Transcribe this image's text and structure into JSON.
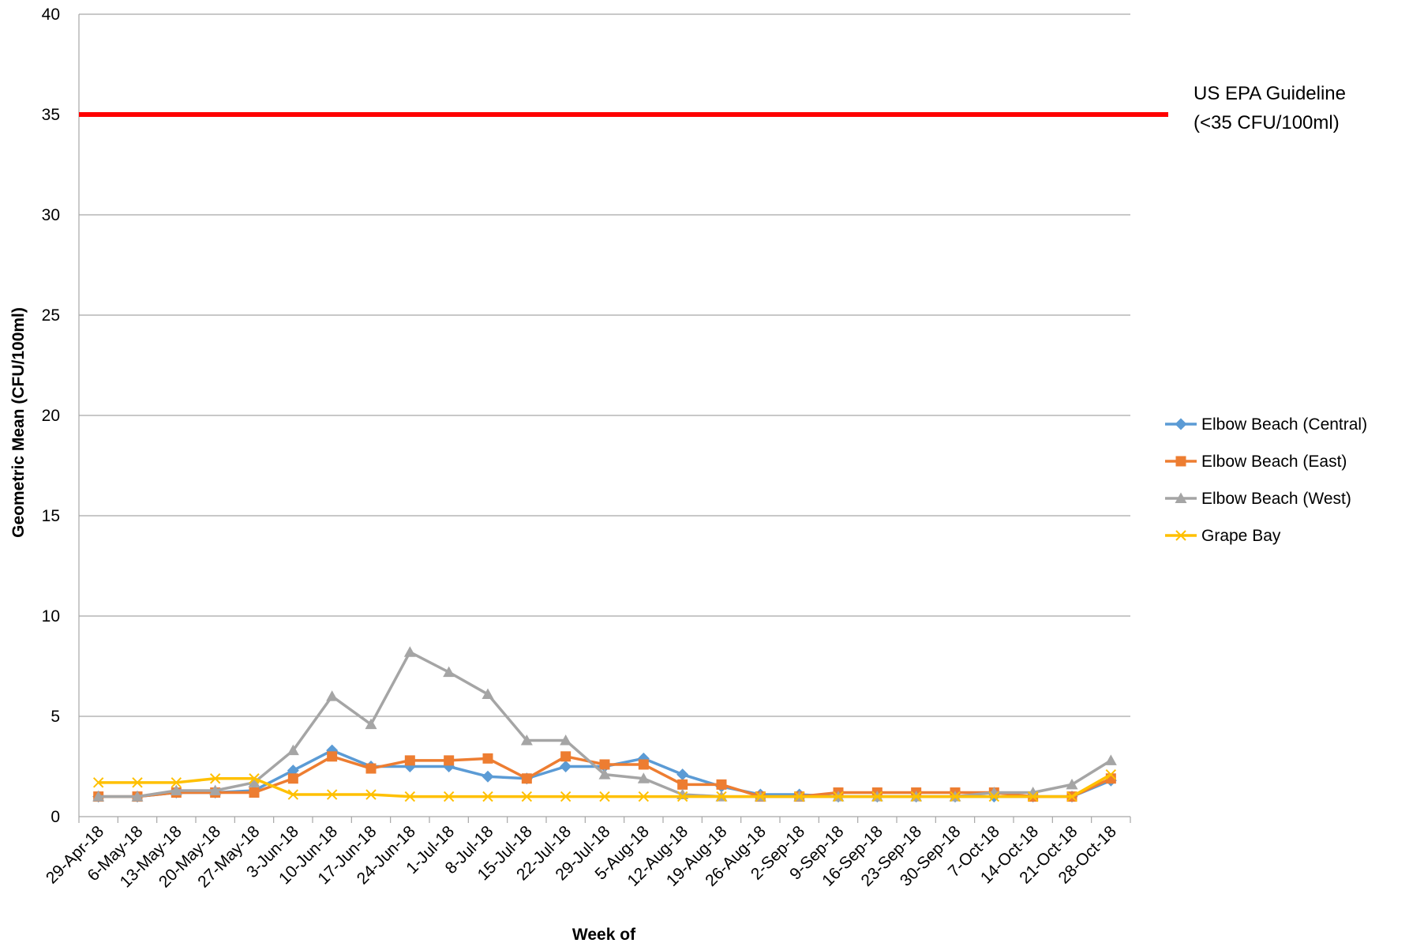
{
  "chart_data": {
    "type": "line",
    "title": "",
    "xlabel": "Week of",
    "ylabel": "Geometric Mean (CFU/100ml)",
    "ylim": [
      0,
      40
    ],
    "yticks": [
      0,
      5,
      10,
      15,
      20,
      25,
      30,
      35,
      40
    ],
    "grid": true,
    "legend_position": "right",
    "categories": [
      "29-Apr-18",
      "6-May-18",
      "13-May-18",
      "20-May-18",
      "27-May-18",
      "3-Jun-18",
      "10-Jun-18",
      "17-Jun-18",
      "24-Jun-18",
      "1-Jul-18",
      "8-Jul-18",
      "15-Jul-18",
      "22-Jul-18",
      "29-Jul-18",
      "5-Aug-18",
      "12-Aug-18",
      "19-Aug-18",
      "26-Aug-18",
      "2-Sep-18",
      "9-Sep-18",
      "16-Sep-18",
      "23-Sep-18",
      "30-Sep-18",
      "7-Oct-18",
      "14-Oct-18",
      "21-Oct-18",
      "28-Oct-18"
    ],
    "series": [
      {
        "name": "Elbow Beach (Central)",
        "color": "#5b9bd5",
        "marker": "diamond",
        "values": [
          1.0,
          1.0,
          1.2,
          1.2,
          1.3,
          2.3,
          3.3,
          2.5,
          2.5,
          2.5,
          2.0,
          1.9,
          2.5,
          2.5,
          2.9,
          2.1,
          1.5,
          1.1,
          1.1,
          1.0,
          1.0,
          1.0,
          1.0,
          1.0,
          1.0,
          1.0,
          1.8
        ]
      },
      {
        "name": "Elbow Beach (East)",
        "color": "#ed7d31",
        "marker": "square",
        "values": [
          1.0,
          1.0,
          1.2,
          1.2,
          1.2,
          1.9,
          3.0,
          2.4,
          2.8,
          2.8,
          2.9,
          1.9,
          3.0,
          2.6,
          2.6,
          1.6,
          1.6,
          1.0,
          1.0,
          1.2,
          1.2,
          1.2,
          1.2,
          1.2,
          1.0,
          1.0,
          1.9
        ]
      },
      {
        "name": "Elbow Beach (West)",
        "color": "#a5a5a5",
        "marker": "triangle",
        "values": [
          1.0,
          1.0,
          1.3,
          1.3,
          1.7,
          3.3,
          6.0,
          4.6,
          8.2,
          7.2,
          6.1,
          3.8,
          3.8,
          2.1,
          1.9,
          1.1,
          1.0,
          1.0,
          1.0,
          1.0,
          1.0,
          1.0,
          1.0,
          1.2,
          1.2,
          1.6,
          2.8
        ]
      },
      {
        "name": "Grape Bay",
        "color": "#ffc000",
        "marker": "x",
        "values": [
          1.7,
          1.7,
          1.7,
          1.9,
          1.9,
          1.1,
          1.1,
          1.1,
          1.0,
          1.0,
          1.0,
          1.0,
          1.0,
          1.0,
          1.0,
          1.0,
          1.0,
          1.0,
          1.0,
          1.0,
          1.0,
          1.0,
          1.0,
          1.0,
          1.0,
          1.0,
          2.1
        ]
      }
    ],
    "reference_line": {
      "value": 35,
      "color": "#ff0000",
      "label_line1": "US EPA Guideline",
      "label_line2": "(<35 CFU/100ml)"
    }
  }
}
